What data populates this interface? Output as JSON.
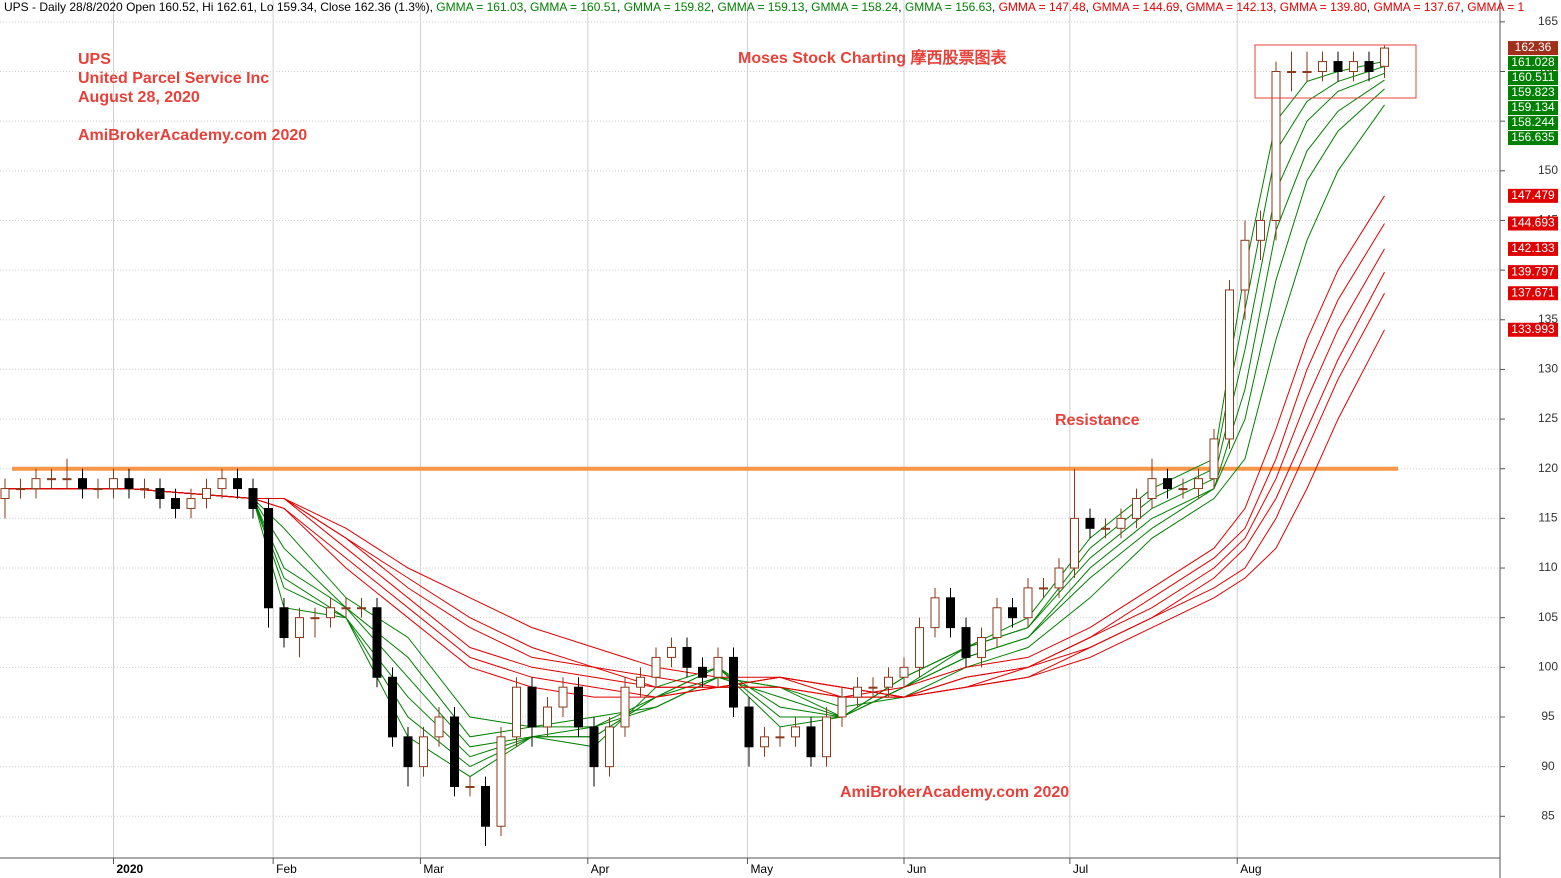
{
  "chart_data": {
    "type": "candlestick",
    "header": "UPS - Daily 28/8/2020 Open 160.52, Hi 162.61, Lo 159.34, Close 162.36 (1.3%)",
    "header_gmma": [
      "GMMA = 161.03",
      "GMMA = 160.51",
      "GMMA = 159.82",
      "GMMA = 159.13",
      "GMMA = 158.24",
      "GMMA = 156.63",
      "GMMA = 147.48",
      "GMMA = 144.69",
      "GMMA = 142.13",
      "GMMA = 139.80",
      "GMMA = 137.67",
      "GMMA = 1"
    ],
    "ticker": "UPS",
    "company": "United Parcel Service Inc",
    "date": "August 28, 2020",
    "watermark": "AmiBrokerAcademy.com 2020",
    "brand": "Moses Stock Charting 摩西股票图表",
    "resistance_label": "Resistance",
    "resistance": 120,
    "resistance_color": "#f79646",
    "up_color": "#8b3a1a",
    "down_color": "#000000",
    "ylim": [
      80.8,
      167.2
    ],
    "yticks": [
      85,
      90,
      95,
      100,
      105,
      110,
      115,
      120,
      125,
      130,
      135,
      140,
      145,
      150,
      155,
      160,
      165
    ],
    "xticks": [
      {
        "value": 7,
        "label": "2020"
      },
      {
        "value": 17.3,
        "label": "Feb"
      },
      {
        "value": 26.8,
        "label": "Mar"
      },
      {
        "value": 37.6,
        "label": "Apr"
      },
      {
        "value": 47.9,
        "label": "May"
      },
      {
        "value": 58,
        "label": "Jun"
      },
      {
        "value": 68.7,
        "label": "Jul"
      },
      {
        "value": 79.5,
        "label": "Aug"
      }
    ],
    "grid": true,
    "open": [
      117,
      118,
      118,
      119,
      119,
      119,
      118,
      118,
      119,
      118,
      118,
      117,
      116,
      117,
      118,
      119,
      118,
      116,
      106,
      103,
      105,
      105,
      106,
      106,
      106,
      99,
      93,
      90,
      93,
      95,
      88,
      88,
      84,
      93,
      98,
      94,
      96,
      98,
      94,
      90,
      94,
      98,
      99,
      101,
      102,
      100,
      99,
      101,
      96,
      92,
      93,
      93,
      94,
      91,
      95,
      97,
      98,
      98,
      99,
      100,
      104,
      107,
      104,
      101,
      103,
      106,
      105,
      108,
      108,
      110,
      115,
      114,
      114,
      115,
      117,
      119,
      118,
      118,
      119,
      123,
      138,
      143,
      145,
      160,
      160,
      160,
      161,
      160,
      161,
      160.52
    ],
    "high": [
      119,
      119,
      120,
      120,
      121,
      120,
      119,
      120,
      120,
      119,
      119,
      118,
      118,
      119,
      120,
      120,
      119,
      117,
      107,
      106,
      106,
      107,
      107,
      107,
      107,
      100,
      94,
      94,
      96,
      96,
      89,
      89,
      94,
      99,
      99,
      97,
      99,
      99,
      95,
      95,
      99,
      100,
      102,
      103,
      103,
      101,
      102,
      102,
      97,
      94,
      94,
      95,
      95,
      96,
      98,
      99,
      99,
      100,
      101,
      105,
      108,
      108,
      105,
      104,
      107,
      107,
      109,
      109,
      111,
      120,
      116,
      115,
      116,
      118,
      121,
      120,
      119,
      120,
      124,
      139,
      145,
      146,
      161,
      162,
      162,
      162,
      162,
      162,
      162,
      162.61
    ],
    "low": [
      115,
      117,
      117,
      118,
      118,
      117,
      117,
      117,
      117,
      117,
      116,
      115,
      115,
      116,
      117,
      117,
      115,
      104,
      102,
      101,
      103,
      104,
      105,
      105,
      98,
      92,
      88,
      89,
      92,
      87,
      87,
      82,
      83,
      92,
      92,
      93,
      95,
      93,
      88,
      89,
      93,
      97,
      98,
      100,
      99,
      98,
      98,
      95,
      90,
      91,
      92,
      92,
      90,
      90,
      94,
      96,
      97,
      97,
      98,
      99,
      103,
      103,
      100,
      100,
      102,
      104,
      104,
      107,
      107,
      109,
      113,
      113,
      113,
      114,
      116,
      117,
      117,
      117,
      118,
      122,
      135,
      141,
      143,
      158,
      159,
      159,
      159,
      159,
      159,
      159.34
    ],
    "close": [
      118,
      118,
      119,
      119,
      119,
      118,
      118,
      119,
      118,
      118,
      117,
      116,
      117,
      118,
      119,
      118,
      116,
      106,
      103,
      105,
      105,
      106,
      106,
      106,
      99,
      93,
      90,
      93,
      95,
      88,
      88,
      84,
      93,
      98,
      94,
      96,
      98,
      94,
      90,
      94,
      98,
      99,
      101,
      102,
      100,
      99,
      101,
      96,
      92,
      93,
      93,
      94,
      91,
      95,
      97,
      98,
      98,
      99,
      100,
      104,
      107,
      104,
      101,
      103,
      106,
      105,
      108,
      108,
      110,
      115,
      114,
      114,
      115,
      117,
      119,
      118,
      118,
      119,
      123,
      138,
      143,
      145,
      160,
      160,
      160,
      161,
      160,
      161,
      160,
      162.36
    ],
    "close_color": "#a0301a",
    "gmma_x": [
      0,
      8,
      16,
      18,
      22,
      26,
      30,
      34,
      38,
      42,
      46,
      50,
      54,
      58,
      62,
      66,
      70,
      74,
      78,
      80,
      82,
      84,
      86,
      89
    ],
    "gmma": [
      {
        "color": "#008000",
        "values": [
          118,
          118,
          117,
          106,
          105,
          93,
          89,
          93,
          92,
          98,
          100,
          94,
          95,
          99,
          102,
          105,
          113,
          118,
          121,
          140,
          155,
          159,
          160,
          161.028
        ],
        "value_label": "161.028"
      },
      {
        "color": "#008000",
        "values": [
          118,
          118,
          117,
          108,
          105,
          95,
          90,
          93,
          93,
          97,
          100,
          95,
          95,
          99,
          102,
          104,
          112,
          117,
          120,
          136,
          152,
          157,
          159,
          160.511
        ],
        "value_label": "160.511"
      },
      {
        "color": "#008000",
        "values": [
          118,
          118,
          117,
          109,
          105,
          97,
          91,
          93,
          93,
          97,
          100,
          96,
          95,
          98,
          102,
          104,
          111,
          116,
          119,
          132,
          148,
          155,
          158,
          159.823
        ],
        "value_label": "159.823"
      },
      {
        "color": "#008000",
        "values": [
          118,
          118,
          117,
          110,
          106,
          99,
          92,
          93,
          94,
          97,
          99,
          97,
          95,
          98,
          101,
          103,
          110,
          115,
          118,
          128,
          144,
          152,
          156,
          159.134
        ],
        "value_label": "159.134"
      },
      {
        "color": "#008000",
        "values": [
          118,
          118,
          117,
          112,
          106,
          101,
          93,
          94,
          94,
          96,
          99,
          98,
          95,
          98,
          101,
          103,
          109,
          114,
          118,
          125,
          139,
          149,
          154,
          158.244
        ],
        "value_label": "158.244"
      },
      {
        "color": "#008000",
        "values": [
          118,
          118,
          117,
          114,
          107,
          103,
          95,
          94,
          95,
          96,
          99,
          98,
          96,
          97,
          100,
          102,
          107,
          113,
          117,
          121,
          133,
          143,
          150,
          156.635
        ],
        "value_label": "156.635"
      },
      {
        "color": "#e00000",
        "values": [
          118,
          118,
          117,
          116,
          110,
          105,
          100,
          98,
          97,
          97,
          98,
          98,
          97,
          98,
          100,
          101,
          104,
          108,
          112,
          116,
          124,
          133,
          140,
          147.479
        ],
        "value_label": "147.479"
      },
      {
        "color": "#e00000",
        "values": [
          118,
          118,
          117,
          116,
          111,
          106,
          101,
          99,
          98,
          97,
          98,
          98,
          97,
          97,
          99,
          100,
          103,
          107,
          111,
          114,
          121,
          130,
          137,
          144.693
        ],
        "value_label": "144.693"
      },
      {
        "color": "#e00000",
        "values": [
          118,
          118,
          117,
          117,
          112,
          107,
          102,
          100,
          99,
          98,
          98,
          99,
          97,
          97,
          99,
          100,
          103,
          106,
          110,
          113,
          119,
          127,
          134,
          142.133
        ],
        "value_label": "142.133"
      },
      {
        "color": "#e00000",
        "values": [
          118,
          118,
          117,
          117,
          113,
          108,
          104,
          101,
          100,
          98,
          98,
          99,
          98,
          97,
          98,
          100,
          102,
          105,
          109,
          112,
          117,
          124,
          131,
          139.797
        ],
        "value_label": "139.797"
      },
      {
        "color": "#e00000",
        "values": [
          118,
          118,
          117,
          117,
          113,
          109,
          105,
          102,
          100,
          99,
          98,
          99,
          98,
          97,
          98,
          99,
          102,
          105,
          108,
          110,
          115,
          122,
          129,
          137.671
        ],
        "value_label": "137.671"
      },
      {
        "color": "#e00000",
        "values": [
          118,
          118,
          117,
          117,
          114,
          110,
          107,
          104,
          102,
          100,
          99,
          99,
          98,
          97,
          98,
          99,
          101,
          104,
          107,
          109,
          112,
          118,
          125,
          133.993
        ],
        "value_label": "133.993"
      }
    ]
  }
}
